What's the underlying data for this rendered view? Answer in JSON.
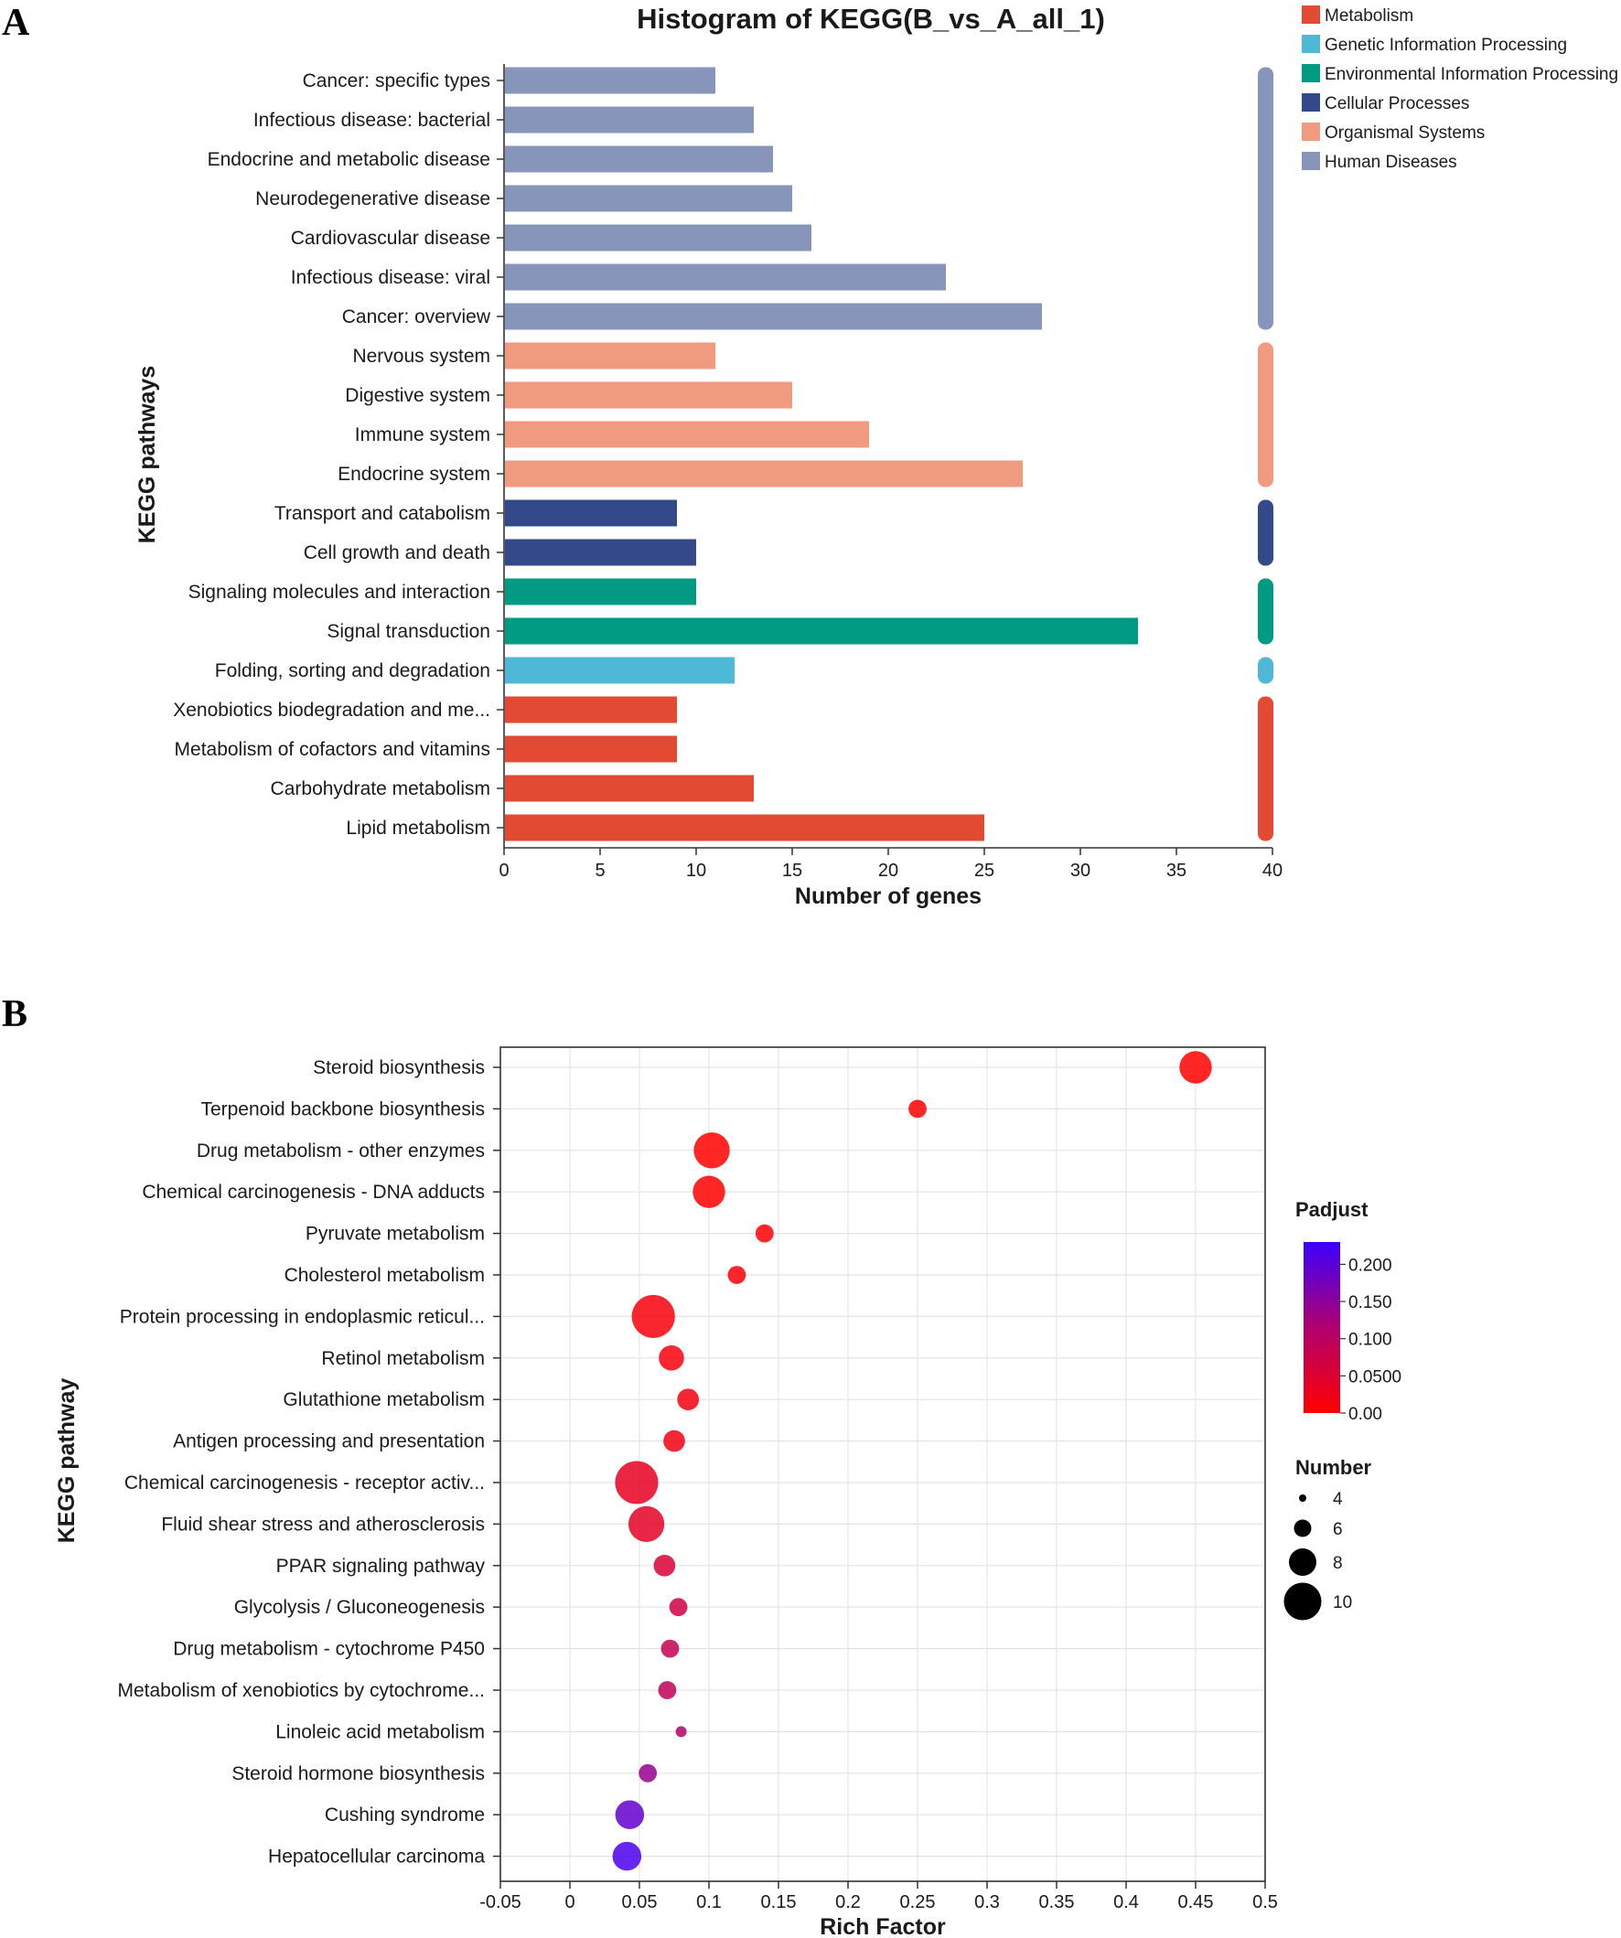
{
  "colors": {
    "Metabolism": "#e34a33",
    "Genetic Information Processing": "#4fb8d6",
    "Environmental Information Processing": "#019a82",
    "Cellular Processes": "#34498a",
    "Organismal Systems": "#f09a80",
    "Human Diseases": "#8795ba"
  },
  "chart_data": [
    {
      "panel": "A",
      "type": "bar",
      "orientation": "horizontal",
      "title": "Histogram of KEGG(B_vs_A_all_1)",
      "xlabel": "Number of genes",
      "ylabel": "KEGG pathways",
      "xlim": [
        0,
        40
      ],
      "xticks": [
        "0",
        "5",
        "10",
        "15",
        "20",
        "25",
        "30",
        "35",
        "40"
      ],
      "legend_position": "top-right",
      "legend": [
        "Metabolism",
        "Genetic Information Processing",
        "Environmental Information Processing",
        "Cellular Processes",
        "Organismal Systems",
        "Human Diseases"
      ],
      "categories": [
        {
          "label": "Cancer: specific types",
          "value": 11,
          "group": "Human Diseases"
        },
        {
          "label": "Infectious disease: bacterial",
          "value": 13,
          "group": "Human Diseases"
        },
        {
          "label": "Endocrine and metabolic disease",
          "value": 14,
          "group": "Human Diseases"
        },
        {
          "label": "Neurodegenerative disease",
          "value": 15,
          "group": "Human Diseases"
        },
        {
          "label": "Cardiovascular disease",
          "value": 16,
          "group": "Human Diseases"
        },
        {
          "label": "Infectious disease: viral",
          "value": 23,
          "group": "Human Diseases"
        },
        {
          "label": "Cancer: overview",
          "value": 28,
          "group": "Human Diseases"
        },
        {
          "label": "Nervous system",
          "value": 11,
          "group": "Organismal Systems"
        },
        {
          "label": "Digestive system",
          "value": 15,
          "group": "Organismal Systems"
        },
        {
          "label": "Immune system",
          "value": 19,
          "group": "Organismal Systems"
        },
        {
          "label": "Endocrine system",
          "value": 27,
          "group": "Organismal Systems"
        },
        {
          "label": "Transport and catabolism",
          "value": 9,
          "group": "Cellular Processes"
        },
        {
          "label": "Cell growth and death",
          "value": 10,
          "group": "Cellular Processes"
        },
        {
          "label": "Signaling molecules and interaction",
          "value": 10,
          "group": "Environmental Information Processing"
        },
        {
          "label": "Signal transduction",
          "value": 33,
          "group": "Environmental Information Processing"
        },
        {
          "label": "Folding, sorting and degradation",
          "value": 12,
          "group": "Genetic Information Processing"
        },
        {
          "label": "Xenobiotics biodegradation and me...",
          "value": 9,
          "group": "Metabolism"
        },
        {
          "label": "Metabolism of cofactors and vitamins",
          "value": 9,
          "group": "Metabolism"
        },
        {
          "label": "Carbohydrate metabolism",
          "value": 13,
          "group": "Metabolism"
        },
        {
          "label": "Lipid metabolism",
          "value": 25,
          "group": "Metabolism"
        }
      ]
    },
    {
      "panel": "B",
      "type": "scatter",
      "xlabel": "Rich Factor",
      "ylabel": "KEGG pathway",
      "xlim": [
        -0.05,
        0.5
      ],
      "xticks": [
        "-0.05",
        "0",
        "0.05",
        "0.1",
        "0.15",
        "0.2",
        "0.25",
        "0.3",
        "0.35",
        "0.4",
        "0.45",
        "0.5"
      ],
      "grid": true,
      "color_legend": {
        "title": "Padjust",
        "range": [
          0,
          0.23
        ],
        "ticks": [
          "0.00",
          "0.0500",
          "0.100",
          "0.150",
          "0.200"
        ],
        "tick_values": [
          0,
          0.05,
          0.1,
          0.15,
          0.2
        ]
      },
      "size_legend": {
        "title": "Number",
        "values": [
          4,
          6,
          8,
          10
        ],
        "labels": [
          "4",
          "6",
          "8",
          "10"
        ]
      },
      "points": [
        {
          "label": "Steroid biosynthesis",
          "x": 0.45,
          "size": 9,
          "padjust": 0.0
        },
        {
          "label": "Terpenoid backbone biosynthesis",
          "x": 0.25,
          "size": 5,
          "padjust": 0.0
        },
        {
          "label": "Drug metabolism - other enzymes",
          "x": 0.102,
          "size": 10,
          "padjust": 0.0
        },
        {
          "label": "Chemical carcinogenesis - DNA adducts",
          "x": 0.1,
          "size": 9,
          "padjust": 0.0
        },
        {
          "label": "Pyruvate metabolism",
          "x": 0.14,
          "size": 5,
          "padjust": 0.002
        },
        {
          "label": "Cholesterol metabolism",
          "x": 0.12,
          "size": 5,
          "padjust": 0.005
        },
        {
          "label": "Protein processing in endoplasmic reticul...",
          "x": 0.06,
          "size": 12,
          "padjust": 0.01
        },
        {
          "label": "Retinol metabolism",
          "x": 0.073,
          "size": 7,
          "padjust": 0.012
        },
        {
          "label": "Glutathione metabolism",
          "x": 0.085,
          "size": 6,
          "padjust": 0.018
        },
        {
          "label": "Antigen processing and presentation",
          "x": 0.075,
          "size": 6,
          "padjust": 0.02
        },
        {
          "label": "Chemical carcinogenesis - receptor activ...",
          "x": 0.048,
          "size": 12,
          "padjust": 0.035
        },
        {
          "label": "Fluid shear stress and atherosclerosis",
          "x": 0.055,
          "size": 10,
          "padjust": 0.04
        },
        {
          "label": "PPAR signaling pathway",
          "x": 0.068,
          "size": 6,
          "padjust": 0.055
        },
        {
          "label": "Glycolysis / Gluconeogenesis",
          "x": 0.078,
          "size": 5,
          "padjust": 0.07
        },
        {
          "label": "Drug metabolism - cytochrome P450",
          "x": 0.072,
          "size": 5,
          "padjust": 0.085
        },
        {
          "label": "Metabolism of xenobiotics by cytochrome...",
          "x": 0.07,
          "size": 5,
          "padjust": 0.09
        },
        {
          "label": "Linoleic acid metabolism",
          "x": 0.08,
          "size": 3,
          "padjust": 0.11
        },
        {
          "label": "Steroid hormone biosynthesis",
          "x": 0.056,
          "size": 5,
          "padjust": 0.14
        },
        {
          "label": "Cushing syndrome",
          "x": 0.043,
          "size": 8,
          "padjust": 0.19
        },
        {
          "label": "Hepatocellular carcinoma",
          "x": 0.041,
          "size": 8,
          "padjust": 0.215
        }
      ]
    }
  ],
  "panel_labels": {
    "a": "A",
    "b": "B"
  }
}
